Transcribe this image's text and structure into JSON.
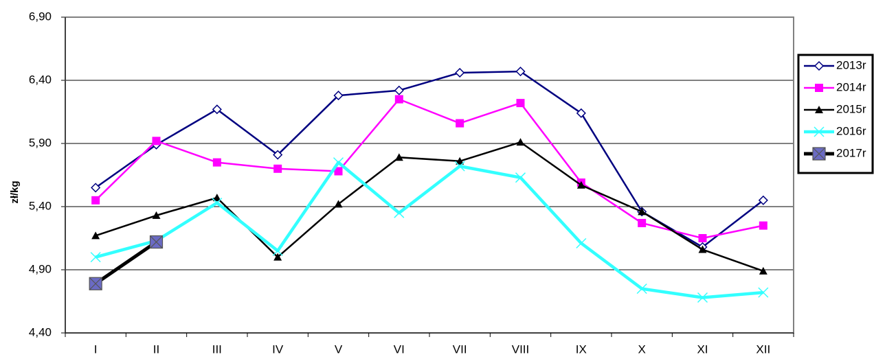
{
  "chart_data": {
    "type": "line",
    "y_label": "zł/kg",
    "categories": [
      "I",
      "II",
      "III",
      "IV",
      "V",
      "VI",
      "VII",
      "VIII",
      "IX",
      "X",
      "XI",
      "XII"
    ],
    "ylim": [
      4.4,
      6.9
    ],
    "yticks": [
      {
        "value": 4.4,
        "label": "4,40"
      },
      {
        "value": 4.9,
        "label": "4,90"
      },
      {
        "value": 5.4,
        "label": "5,40"
      },
      {
        "value": 5.9,
        "label": "5,90"
      },
      {
        "value": 6.4,
        "label": "6,40"
      },
      {
        "value": 6.9,
        "label": "6,90"
      }
    ],
    "grid": true,
    "legend": "top-right",
    "series": [
      {
        "name": "2013r",
        "color": "#000080",
        "marker": "diamond",
        "values": [
          5.55,
          5.89,
          6.17,
          5.81,
          6.28,
          6.32,
          6.46,
          6.47,
          6.14,
          5.36,
          5.08,
          5.45
        ]
      },
      {
        "name": "2014r",
        "color": "#ff00ff",
        "marker": "square",
        "values": [
          5.45,
          5.92,
          5.75,
          5.7,
          5.68,
          6.25,
          6.06,
          6.22,
          5.59,
          5.27,
          5.15,
          5.25
        ]
      },
      {
        "name": "2015r",
        "color": "#000000",
        "marker": "triangle",
        "values": [
          5.17,
          5.33,
          5.47,
          5.0,
          5.42,
          5.79,
          5.76,
          5.91,
          5.57,
          5.36,
          5.06,
          4.89
        ]
      },
      {
        "name": "2016r",
        "color": "#33ffff",
        "marker": "x",
        "values": [
          5.0,
          5.13,
          5.43,
          5.05,
          5.75,
          5.35,
          5.72,
          5.63,
          5.11,
          4.75,
          4.68,
          4.72
        ]
      },
      {
        "name": "2017r",
        "color": "#000000",
        "marker": "boxx",
        "values": [
          4.79,
          5.12,
          null,
          null,
          null,
          null,
          null,
          null,
          null,
          null,
          null,
          null
        ]
      }
    ]
  }
}
